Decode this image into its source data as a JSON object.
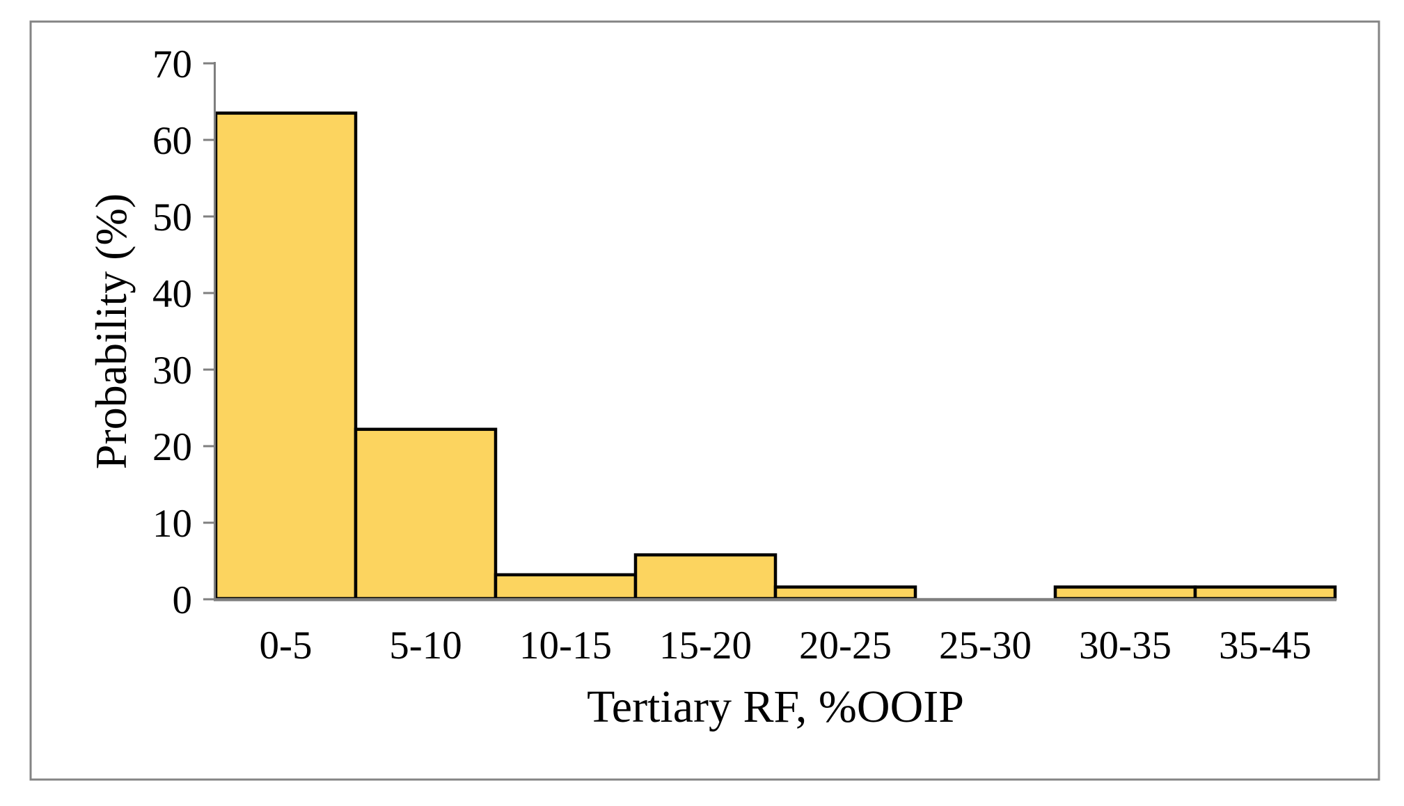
{
  "chart_data": {
    "type": "bar",
    "title": "",
    "xlabel": "Tertiary RF, %OOIP",
    "ylabel": "Probability (%)",
    "categories": [
      "0-5",
      "5-10",
      "10-15",
      "15-20",
      "20-25",
      "25-30",
      "30-35",
      "35-45"
    ],
    "values": [
      63.5,
      22.2,
      3.2,
      5.8,
      1.6,
      0,
      1.6,
      1.6
    ],
    "ylim": [
      0,
      70
    ],
    "yticks": [
      0,
      10,
      20,
      30,
      40,
      50,
      60,
      70
    ],
    "grid": false,
    "legend": false,
    "bar_gap": 0,
    "colors": {
      "bar_fill": "#FCD45F",
      "bar_stroke": "#000000",
      "axis": "#7F7F7F",
      "figure_border": "#848484",
      "text": "#000000",
      "background": "#FFFFFF"
    }
  }
}
